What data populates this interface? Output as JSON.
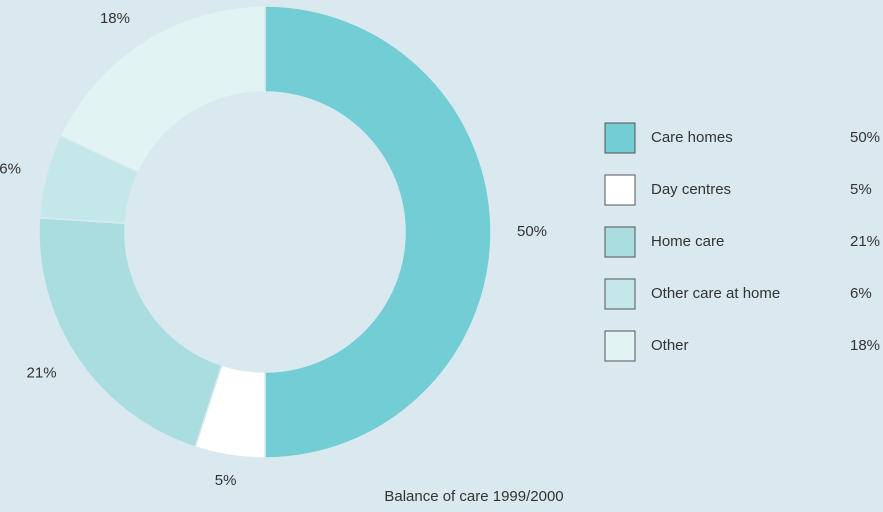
{
  "chart_data": {
    "type": "donut",
    "title": "Balance of care 1999/2000",
    "categories": [
      "Care homes",
      "Day centres",
      "Home care",
      "Other care at home",
      "Other"
    ],
    "values": [
      50,
      5,
      21,
      6,
      18
    ],
    "value_labels": [
      "50%",
      "5%",
      "21%",
      "6%",
      "18%"
    ],
    "colors": [
      "#72cdd4",
      "#ffffff",
      "#a9dde0",
      "#c4e7e9",
      "#e1f3f3"
    ],
    "legend": "right"
  }
}
